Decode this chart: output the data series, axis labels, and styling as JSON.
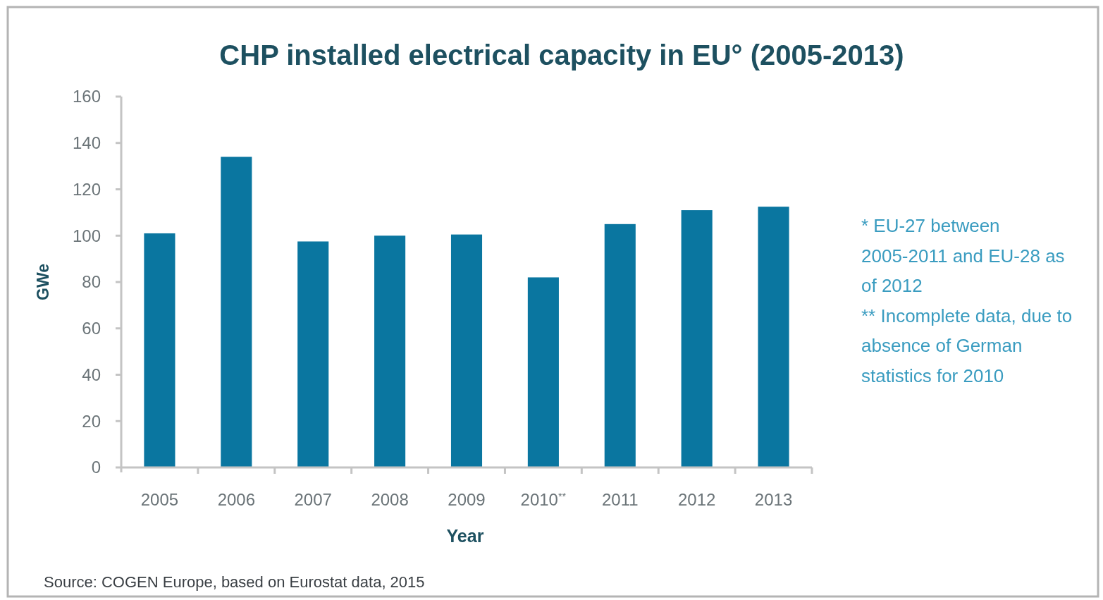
{
  "chart_data": {
    "type": "bar",
    "title": "CHP installed electrical capacity in EU° (2005-2013)",
    "xlabel": "Year",
    "ylabel": "GWe",
    "categories": [
      "2005",
      "2006",
      "2007",
      "2008",
      "2009",
      "2010$^{**}$",
      "2011",
      "2012",
      "2013"
    ],
    "values": [
      101,
      134,
      97.5,
      100,
      100.5,
      82,
      105,
      111,
      112.5
    ],
    "color": "#0a76a0",
    "ylim": [
      0,
      160
    ],
    "yticks": [
      0,
      20,
      40,
      60,
      80,
      100,
      120,
      140,
      160
    ],
    "annotations": [
      "* EU-27 between 2005-2011 and EU-28 as of 2012",
      "** Incomplete data, due to absence of German statistics for 2010",
      "Source: COGEN Europe, based on Eurostat data, 2015"
    ]
  }
}
